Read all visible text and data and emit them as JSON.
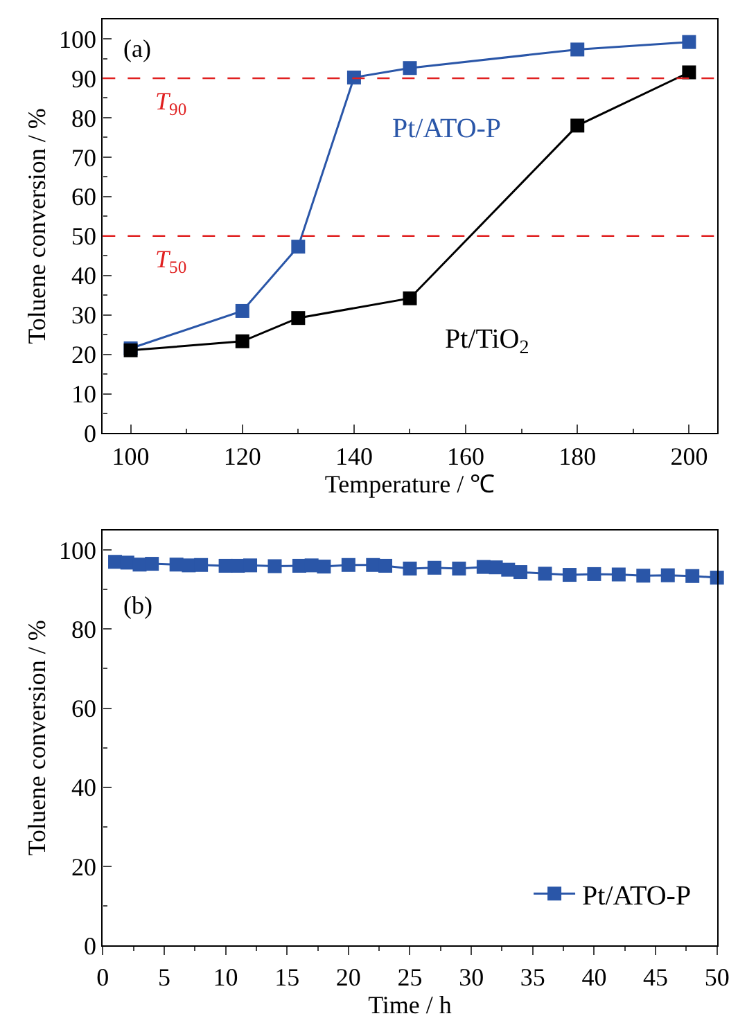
{
  "chart_data": [
    {
      "type": "line",
      "xlabel": "Temperature / ℃",
      "ylabel": "Toluene conversion / %",
      "series": [
        {
          "name": "Pt/ATO-P",
          "color": "#2a56a8",
          "x": [
            100,
            120,
            130,
            140,
            150,
            180,
            200
          ],
          "values": [
            21.5,
            31,
            47.3,
            90.2,
            92.6,
            97.3,
            99.2
          ]
        },
        {
          "name": "Pt/TiO$_{2}$",
          "color": "#000000",
          "x": [
            100,
            120,
            130,
            150,
            180,
            200
          ],
          "values": [
            21,
            23.3,
            29.2,
            34.2,
            78,
            91.5
          ]
        }
      ],
      "xlim": [
        95,
        205
      ],
      "xticks": [
        100,
        120,
        140,
        160,
        180,
        200
      ],
      "ylim": [
        0,
        105
      ],
      "yticks": [
        0,
        10,
        20,
        30,
        40,
        50,
        60,
        70,
        80,
        90,
        100
      ],
      "ref_lines": [
        {
          "axis": "y",
          "value": 90,
          "label": "T$_{90}$",
          "color": "#e02020",
          "line_style": "dashed"
        },
        {
          "axis": "y",
          "value": 50,
          "label": "T$_{50}$",
          "color": "#e02020",
          "line_style": "dashed"
        }
      ],
      "annotations": [
        "(a)"
      ],
      "marker": "square",
      "line_style": "solid",
      "legend": false
    },
    {
      "type": "line",
      "xlabel": "Time / h",
      "ylabel": "Toluene conversion / %",
      "series": [
        {
          "name": "Pt/ATO-P",
          "color": "#2a56a8",
          "x": [
            1,
            2,
            3,
            4,
            6,
            7,
            8,
            10,
            11,
            12,
            14,
            16,
            17,
            18,
            20,
            22,
            23,
            25,
            27,
            29,
            31,
            32,
            33,
            34,
            36,
            38,
            40,
            42,
            44,
            46,
            48,
            50
          ],
          "values": [
            97,
            96.8,
            96.3,
            96.5,
            96.3,
            96.1,
            96.2,
            96,
            96,
            96.1,
            95.9,
            96,
            96.1,
            95.8,
            96.2,
            96.2,
            96,
            95.3,
            95.5,
            95.3,
            95.7,
            95.6,
            95,
            94.4,
            94,
            93.7,
            93.9,
            93.8,
            93.5,
            93.6,
            93.4,
            93
          ]
        }
      ],
      "xlim": [
        0,
        50
      ],
      "xticks": [
        0,
        5,
        10,
        15,
        20,
        25,
        30,
        35,
        40,
        45,
        50
      ],
      "ylim": [
        0,
        105
      ],
      "yticks": [
        0,
        20,
        40,
        60,
        80,
        100
      ],
      "annotations": [
        "(b)"
      ],
      "marker": "square",
      "line_style": "solid",
      "legend": "bottom right"
    }
  ]
}
